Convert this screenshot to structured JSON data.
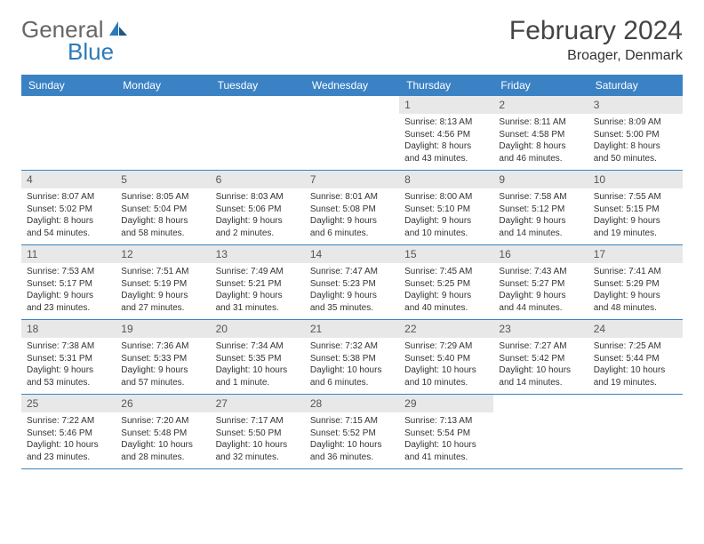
{
  "brand": {
    "part1": "General",
    "part2": "Blue"
  },
  "title": "February 2024",
  "location": "Broager, Denmark",
  "colors": {
    "header_bg": "#3b82c4",
    "header_text": "#ffffff",
    "daynum_bg": "#e8e8e8",
    "text": "#333333",
    "brand_gray": "#666666",
    "brand_blue": "#2d7ab8",
    "border": "#3b82c4"
  },
  "dayNames": [
    "Sunday",
    "Monday",
    "Tuesday",
    "Wednesday",
    "Thursday",
    "Friday",
    "Saturday"
  ],
  "weeks": [
    [
      null,
      null,
      null,
      null,
      {
        "n": "1",
        "sr": "Sunrise: 8:13 AM",
        "ss": "Sunset: 4:56 PM",
        "dl": "Daylight: 8 hours and 43 minutes."
      },
      {
        "n": "2",
        "sr": "Sunrise: 8:11 AM",
        "ss": "Sunset: 4:58 PM",
        "dl": "Daylight: 8 hours and 46 minutes."
      },
      {
        "n": "3",
        "sr": "Sunrise: 8:09 AM",
        "ss": "Sunset: 5:00 PM",
        "dl": "Daylight: 8 hours and 50 minutes."
      }
    ],
    [
      {
        "n": "4",
        "sr": "Sunrise: 8:07 AM",
        "ss": "Sunset: 5:02 PM",
        "dl": "Daylight: 8 hours and 54 minutes."
      },
      {
        "n": "5",
        "sr": "Sunrise: 8:05 AM",
        "ss": "Sunset: 5:04 PM",
        "dl": "Daylight: 8 hours and 58 minutes."
      },
      {
        "n": "6",
        "sr": "Sunrise: 8:03 AM",
        "ss": "Sunset: 5:06 PM",
        "dl": "Daylight: 9 hours and 2 minutes."
      },
      {
        "n": "7",
        "sr": "Sunrise: 8:01 AM",
        "ss": "Sunset: 5:08 PM",
        "dl": "Daylight: 9 hours and 6 minutes."
      },
      {
        "n": "8",
        "sr": "Sunrise: 8:00 AM",
        "ss": "Sunset: 5:10 PM",
        "dl": "Daylight: 9 hours and 10 minutes."
      },
      {
        "n": "9",
        "sr": "Sunrise: 7:58 AM",
        "ss": "Sunset: 5:12 PM",
        "dl": "Daylight: 9 hours and 14 minutes."
      },
      {
        "n": "10",
        "sr": "Sunrise: 7:55 AM",
        "ss": "Sunset: 5:15 PM",
        "dl": "Daylight: 9 hours and 19 minutes."
      }
    ],
    [
      {
        "n": "11",
        "sr": "Sunrise: 7:53 AM",
        "ss": "Sunset: 5:17 PM",
        "dl": "Daylight: 9 hours and 23 minutes."
      },
      {
        "n": "12",
        "sr": "Sunrise: 7:51 AM",
        "ss": "Sunset: 5:19 PM",
        "dl": "Daylight: 9 hours and 27 minutes."
      },
      {
        "n": "13",
        "sr": "Sunrise: 7:49 AM",
        "ss": "Sunset: 5:21 PM",
        "dl": "Daylight: 9 hours and 31 minutes."
      },
      {
        "n": "14",
        "sr": "Sunrise: 7:47 AM",
        "ss": "Sunset: 5:23 PM",
        "dl": "Daylight: 9 hours and 35 minutes."
      },
      {
        "n": "15",
        "sr": "Sunrise: 7:45 AM",
        "ss": "Sunset: 5:25 PM",
        "dl": "Daylight: 9 hours and 40 minutes."
      },
      {
        "n": "16",
        "sr": "Sunrise: 7:43 AM",
        "ss": "Sunset: 5:27 PM",
        "dl": "Daylight: 9 hours and 44 minutes."
      },
      {
        "n": "17",
        "sr": "Sunrise: 7:41 AM",
        "ss": "Sunset: 5:29 PM",
        "dl": "Daylight: 9 hours and 48 minutes."
      }
    ],
    [
      {
        "n": "18",
        "sr": "Sunrise: 7:38 AM",
        "ss": "Sunset: 5:31 PM",
        "dl": "Daylight: 9 hours and 53 minutes."
      },
      {
        "n": "19",
        "sr": "Sunrise: 7:36 AM",
        "ss": "Sunset: 5:33 PM",
        "dl": "Daylight: 9 hours and 57 minutes."
      },
      {
        "n": "20",
        "sr": "Sunrise: 7:34 AM",
        "ss": "Sunset: 5:35 PM",
        "dl": "Daylight: 10 hours and 1 minute."
      },
      {
        "n": "21",
        "sr": "Sunrise: 7:32 AM",
        "ss": "Sunset: 5:38 PM",
        "dl": "Daylight: 10 hours and 6 minutes."
      },
      {
        "n": "22",
        "sr": "Sunrise: 7:29 AM",
        "ss": "Sunset: 5:40 PM",
        "dl": "Daylight: 10 hours and 10 minutes."
      },
      {
        "n": "23",
        "sr": "Sunrise: 7:27 AM",
        "ss": "Sunset: 5:42 PM",
        "dl": "Daylight: 10 hours and 14 minutes."
      },
      {
        "n": "24",
        "sr": "Sunrise: 7:25 AM",
        "ss": "Sunset: 5:44 PM",
        "dl": "Daylight: 10 hours and 19 minutes."
      }
    ],
    [
      {
        "n": "25",
        "sr": "Sunrise: 7:22 AM",
        "ss": "Sunset: 5:46 PM",
        "dl": "Daylight: 10 hours and 23 minutes."
      },
      {
        "n": "26",
        "sr": "Sunrise: 7:20 AM",
        "ss": "Sunset: 5:48 PM",
        "dl": "Daylight: 10 hours and 28 minutes."
      },
      {
        "n": "27",
        "sr": "Sunrise: 7:17 AM",
        "ss": "Sunset: 5:50 PM",
        "dl": "Daylight: 10 hours and 32 minutes."
      },
      {
        "n": "28",
        "sr": "Sunrise: 7:15 AM",
        "ss": "Sunset: 5:52 PM",
        "dl": "Daylight: 10 hours and 36 minutes."
      },
      {
        "n": "29",
        "sr": "Sunrise: 7:13 AM",
        "ss": "Sunset: 5:54 PM",
        "dl": "Daylight: 10 hours and 41 minutes."
      },
      null,
      null
    ]
  ]
}
